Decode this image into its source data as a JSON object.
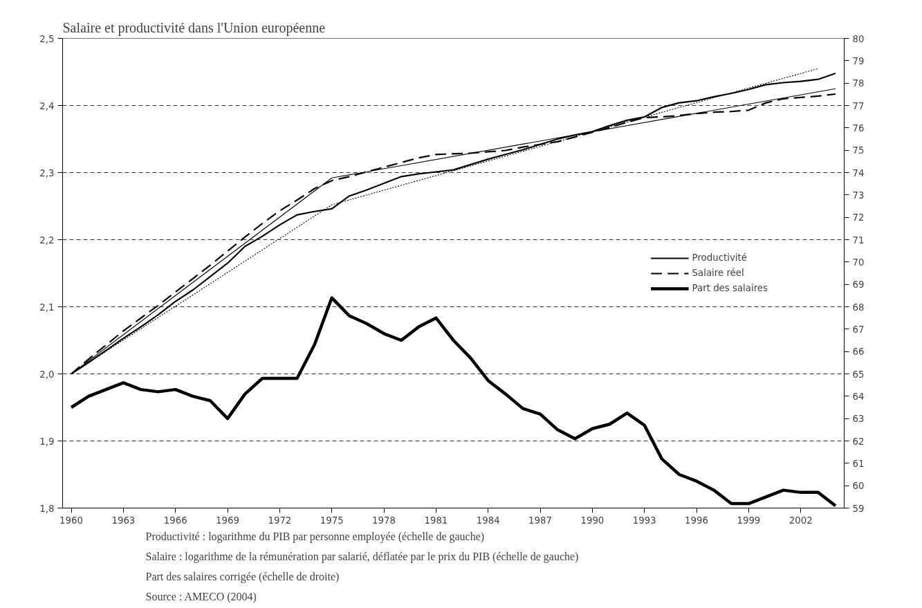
{
  "chart_data": {
    "type": "line",
    "title": "Salaire et productivité dans l'Union européenne",
    "x": [
      1960,
      1961,
      1962,
      1963,
      1964,
      1965,
      1966,
      1967,
      1968,
      1969,
      1970,
      1971,
      1972,
      1973,
      1974,
      1975,
      1976,
      1977,
      1978,
      1979,
      1980,
      1981,
      1982,
      1983,
      1984,
      1985,
      1986,
      1987,
      1988,
      1989,
      1990,
      1991,
      1992,
      1993,
      1994,
      1995,
      1996,
      1997,
      1998,
      1999,
      2000,
      2001,
      2002,
      2003,
      2004
    ],
    "xlim": [
      1959.5,
      2004.5
    ],
    "xticks": [
      1960,
      1963,
      1966,
      1969,
      1972,
      1975,
      1978,
      1981,
      1984,
      1987,
      1990,
      1993,
      1996,
      1999,
      2002
    ],
    "ylim": [
      1.8,
      2.5
    ],
    "yticks": [
      {
        "value": 1.8,
        "label": "1,8"
      },
      {
        "value": 1.9,
        "label": "1,9"
      },
      {
        "value": 2.0,
        "label": "2,0"
      },
      {
        "value": 2.1,
        "label": "2,1"
      },
      {
        "value": 2.2,
        "label": "2,2"
      },
      {
        "value": 2.3,
        "label": "2,3"
      },
      {
        "value": 2.4,
        "label": "2,4"
      },
      {
        "value": 2.5,
        "label": "2,5"
      }
    ],
    "y2lim": [
      59,
      80
    ],
    "y2ticks": [
      59,
      60,
      61,
      62,
      63,
      64,
      65,
      66,
      67,
      68,
      69,
      70,
      71,
      72,
      73,
      74,
      75,
      76,
      77,
      78,
      79,
      80
    ],
    "grid": "y",
    "legend": "right",
    "marker": "none",
    "series": [
      {
        "name": "Productivité",
        "color": "#000000",
        "line_style": "solid",
        "values": [
          2.0,
          2.017,
          2.035,
          2.053,
          2.07,
          2.088,
          2.108,
          2.125,
          2.145,
          2.165,
          2.19,
          2.205,
          2.222,
          2.237,
          2.242,
          2.246,
          2.265,
          2.274,
          2.284,
          2.294,
          2.298,
          2.301,
          2.304,
          2.312,
          2.32,
          2.327,
          2.334,
          2.342,
          2.35,
          2.356,
          2.361,
          2.37,
          2.378,
          2.383,
          2.397,
          2.404,
          2.407,
          2.413,
          2.418,
          2.424,
          2.431,
          2.434,
          2.436,
          2.439,
          2.448
        ]
      },
      {
        "name": "Salaire réel",
        "color": "#000000",
        "line_style": "dashed",
        "values": [
          2.0,
          2.022,
          2.043,
          2.064,
          2.083,
          2.102,
          2.122,
          2.142,
          2.162,
          2.183,
          2.204,
          2.224,
          2.243,
          2.259,
          2.276,
          2.288,
          2.294,
          2.301,
          2.308,
          2.315,
          2.322,
          2.327,
          2.328,
          2.329,
          2.331,
          2.333,
          2.338,
          2.342,
          2.346,
          2.353,
          2.36,
          2.367,
          2.375,
          2.382,
          2.383,
          2.385,
          2.388,
          2.39,
          2.391,
          2.393,
          2.404,
          2.41,
          2.412,
          2.414,
          2.417
        ]
      },
      {
        "name": "Part des salaires",
        "color": "#000000",
        "line_style": "solid",
        "axis": "y2",
        "values": [
          63.5,
          64.0,
          64.3,
          64.6,
          64.3,
          64.2,
          64.3,
          64.0,
          63.8,
          63.0,
          64.1,
          64.8,
          64.8,
          64.8,
          66.3,
          68.4,
          67.6,
          67.25,
          66.8,
          66.5,
          67.1,
          67.5,
          66.5,
          65.7,
          64.7,
          64.1,
          63.45,
          63.2,
          62.5,
          62.1,
          62.55,
          62.75,
          63.25,
          62.7,
          61.2,
          60.5,
          60.2,
          59.8,
          59.2,
          59.2,
          59.5,
          59.8,
          59.7,
          59.7,
          59.1
        ]
      },
      {
        "color": "#000000",
        "line_style": "solid",
        "x": [
          1960,
          1975,
          2004
        ],
        "values": [
          2.0,
          2.292,
          2.425
        ]
      },
      {
        "color": "#000000",
        "line_style": "dotted",
        "x": [
          1960,
          1975,
          2003
        ],
        "values": [
          2.0,
          2.252,
          2.455
        ]
      }
    ],
    "annotations": [
      "Productivité : logarithme du PIB par personne employée (échelle de gauche)",
      "Salaire : logarithme de la rémunération par salarié, déflatée par le prix du PIB (échelle de gauche)",
      "Part des salaires corrigée (échelle de droite)",
      "Source : AMECO (2004)"
    ]
  }
}
